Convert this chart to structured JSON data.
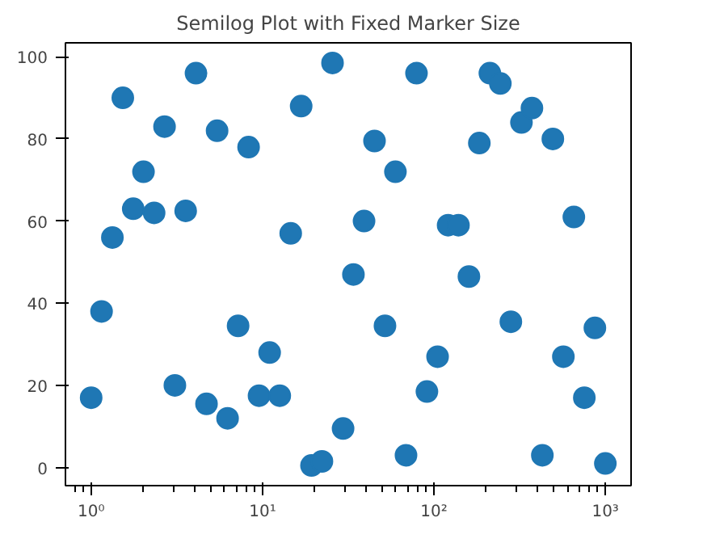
{
  "chart_data": {
    "type": "scatter",
    "title": "Semilog Plot with Fixed Marker Size",
    "log": "x",
    "marker": "circle",
    "grid": false,
    "x": [
      1.0,
      1.15,
      1.33,
      1.53,
      1.76,
      2.02,
      2.33,
      2.68,
      3.08,
      3.56,
      4.09,
      4.71,
      5.43,
      6.25,
      7.2,
      8.29,
      9.54,
      11.0,
      12.6,
      14.6,
      16.8,
      19.3,
      22.2,
      25.6,
      29.5,
      33.9,
      39.1,
      45.0,
      51.8,
      59.6,
      68.7,
      79.1,
      91.0,
      105,
      121,
      139,
      160,
      184,
      212,
      244,
      281,
      324,
      373,
      429,
      494,
      569,
      655,
      754,
      869,
      1000
    ],
    "series": [
      {
        "color": "#1f77b4",
        "values": [
          17,
          38,
          56,
          90,
          63,
          72,
          62,
          83,
          20,
          62.5,
          96,
          15.5,
          82,
          12,
          34.5,
          78,
          17.5,
          28,
          17.5,
          57,
          88,
          0.5,
          1.5,
          98.5,
          9.5,
          47,
          60,
          79.5,
          34.5,
          72,
          3,
          96,
          18.5,
          27,
          59,
          59,
          46.5,
          79,
          96,
          93.5,
          35.5,
          84,
          87.5,
          3,
          80,
          27,
          61,
          17,
          34,
          1
        ]
      }
    ],
    "xlim": [
      0.708,
      1413
    ],
    "ylim": [
      -4.4,
      103.4
    ],
    "xticks": [
      {
        "value": 1,
        "label": "10⁰"
      },
      {
        "value": 10,
        "label": "10¹"
      },
      {
        "value": 100,
        "label": "10²"
      },
      {
        "value": 1000,
        "label": "10³"
      }
    ],
    "yticks": [
      0,
      20,
      40,
      60,
      80,
      100
    ]
  }
}
